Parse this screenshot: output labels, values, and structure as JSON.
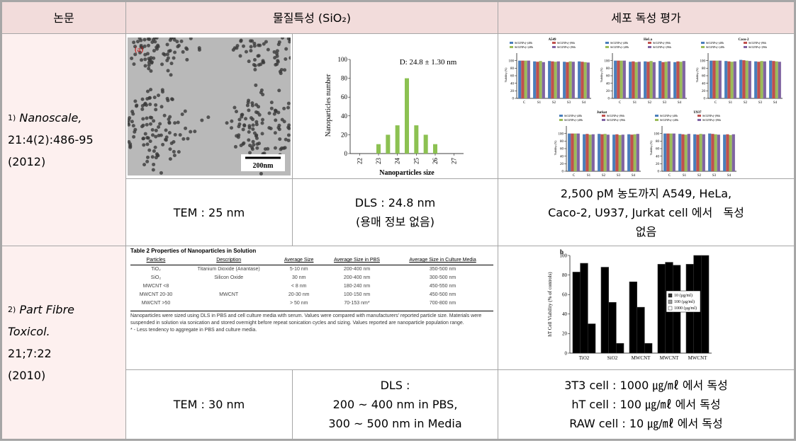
{
  "header": {
    "paper": "논문",
    "properties": "물질특성 (SiO₂)",
    "toxicity": "세포 독성 평가"
  },
  "rows": [
    {
      "citation": {
        "number": "1)",
        "journal": "Nanoscale,",
        "lines": [
          "21:4(2):486-95",
          "(2012)"
        ]
      },
      "tem_image": {
        "panel": "(a)",
        "scale_bar": "200nm"
      },
      "dls_chart": {
        "type": "bar",
        "annotation": "D: 24.8 ± 1.30 nm",
        "x_label": "Nanoparticles size",
        "y_label": "Nanoparticles number",
        "x": [
          23,
          23.5,
          24,
          24.5,
          25,
          25.5,
          26
        ],
        "values": [
          10,
          20,
          30,
          80,
          30,
          20,
          10
        ],
        "color": "#8cc152",
        "xlim": [
          21.5,
          27.5
        ],
        "xticks": [
          22,
          23,
          24,
          25,
          26,
          27
        ],
        "ylim": [
          0,
          100
        ],
        "yticks": [
          0,
          20,
          40,
          60,
          80,
          100
        ]
      },
      "viability_figure": {
        "type": "bar",
        "y_label": "Viability (%)",
        "categories": [
          "C",
          "S1",
          "S2",
          "S3",
          "S4"
        ],
        "ylim": [
          0,
          120
        ],
        "yticks": [
          0,
          20,
          40,
          60,
          80,
          100
        ],
        "series": [
          {
            "name": "SiO2NPs(-)48h",
            "color": "#4a7ebb"
          },
          {
            "name": "SiO2NPs(-)96h",
            "color": "#c0504d"
          },
          {
            "name": "SiO2NPs(+)48h",
            "color": "#9bbb59"
          },
          {
            "name": "SiO2NPs(+)96h",
            "color": "#8064a2"
          }
        ],
        "panels": [
          {
            "title": "A549",
            "values": [
              [
                100,
                98,
                99,
                97,
                98
              ],
              [
                100,
                97,
                98,
                96,
                97
              ],
              [
                100,
                99,
                97,
                98,
                96
              ],
              [
                100,
                96,
                98,
                97,
                95
              ]
            ]
          },
          {
            "title": "HeLa",
            "values": [
              [
                100,
                97,
                98,
                99,
                96
              ],
              [
                100,
                98,
                97,
                96,
                98
              ],
              [
                100,
                96,
                99,
                97,
                97
              ],
              [
                100,
                97,
                96,
                98,
                99
              ]
            ]
          },
          {
            "title": "Caco-2",
            "values": [
              [
                100,
                99,
                102,
                98,
                100
              ],
              [
                100,
                98,
                101,
                97,
                99
              ],
              [
                100,
                97,
                100,
                99,
                98
              ],
              [
                100,
                98,
                99,
                98,
                97
              ]
            ]
          },
          {
            "title": "Jurkat",
            "values": [
              [
                100,
                98,
                99,
                97,
                98
              ],
              [
                100,
                99,
                98,
                98,
                97
              ],
              [
                100,
                97,
                99,
                96,
                98
              ],
              [
                100,
                98,
                97,
                97,
                99
              ]
            ]
          },
          {
            "title": "U937",
            "values": [
              [
                100,
                99,
                98,
                100,
                97
              ],
              [
                100,
                98,
                97,
                99,
                98
              ],
              [
                100,
                97,
                99,
                98,
                96
              ],
              [
                100,
                99,
                98,
                97,
                98
              ]
            ]
          }
        ]
      },
      "tem": "TEM : 25 nm",
      "dls": [
        "DLS : 24.8 nm",
        "(용매 정보 없음)"
      ],
      "toxicity": [
        "2,500 pM 농도까지 A549, HeLa,",
        "Caco-2, U937, Jurkat cell 에서   독성",
        "없음"
      ]
    },
    {
      "citation": {
        "number": "2)",
        "journal": "Part Fibre",
        "lines": [
          "Toxicol.",
          "21;7:22",
          "(2010)"
        ]
      },
      "table2": {
        "title": "Table 2 Properties of Nanoparticles in Solution",
        "columns": [
          "Particles",
          "Description",
          "Average Size",
          "Average Size in PBS",
          "Average Size in Culture Media"
        ],
        "rows": [
          [
            "TiO₂",
            "Titanium Dioxide (Anantase)",
            "5-10 nm",
            "200-400 nm",
            "350-500 nm"
          ],
          [
            "SiO₂",
            "Silicon Oxide",
            "30 nm",
            "200-400 nm",
            "300-500 nm"
          ],
          [
            "MWCNT <8",
            null,
            "< 8 nm",
            "180-240 nm",
            "450-550 nm"
          ],
          [
            "MWCNT 20-30",
            "MWCNT",
            "20-30 nm",
            "100-150 nm",
            "450-500 nm"
          ],
          [
            "MWCNT >50",
            null,
            "> 50 nm",
            "70-153 nm*",
            "700-800 nm"
          ]
        ],
        "note": "Nanoparticles were sized using DLS in PBS and cell culture media with serum. Values were compared with manufacturers' reported particle size. Materials were suspended in solution via sonication and stored overnight before repeat sonication cycles and sizing. Values reported are nanoparticle population range.",
        "footnote": "* - Less tendency to aggregate in PBS and culture media."
      },
      "viability_chart": {
        "type": "bar",
        "panel": "b",
        "y_label": "hT Cell Viability (% of controls)",
        "categories": [
          "TiO2",
          "SiO2",
          "MWCNT",
          "MWCNT",
          "MWCNT"
        ],
        "series": [
          {
            "name": "10 (µg/ml)",
            "color": "#333333",
            "values": [
              83,
              88,
              73,
              91,
              91
            ]
          },
          {
            "name": "100 (µg/ml)",
            "color": "#a0a0a0",
            "values": [
              92,
              52,
              47,
              93,
              100
            ]
          },
          {
            "name": "1000 (µg/ml)",
            "color": "#ffffff",
            "values": [
              30,
              10,
              10,
              90,
              100
            ]
          }
        ],
        "ylim": [
          0,
          100
        ],
        "yticks": [
          0,
          20,
          40,
          60,
          80,
          100
        ]
      },
      "tem": "TEM : 30 nm",
      "dls": [
        "DLS :",
        "200 ~ 400 nm in PBS,",
        "300 ~ 500 nm in Media"
      ],
      "toxicity": [
        "3T3 cell : 1000 ㎍/㎖ 에서 독성",
        "hT cell : 100 ㎍/㎖ 에서 독성",
        "RAW cell : 10 ㎍/㎖ 에서 독성"
      ]
    }
  ]
}
